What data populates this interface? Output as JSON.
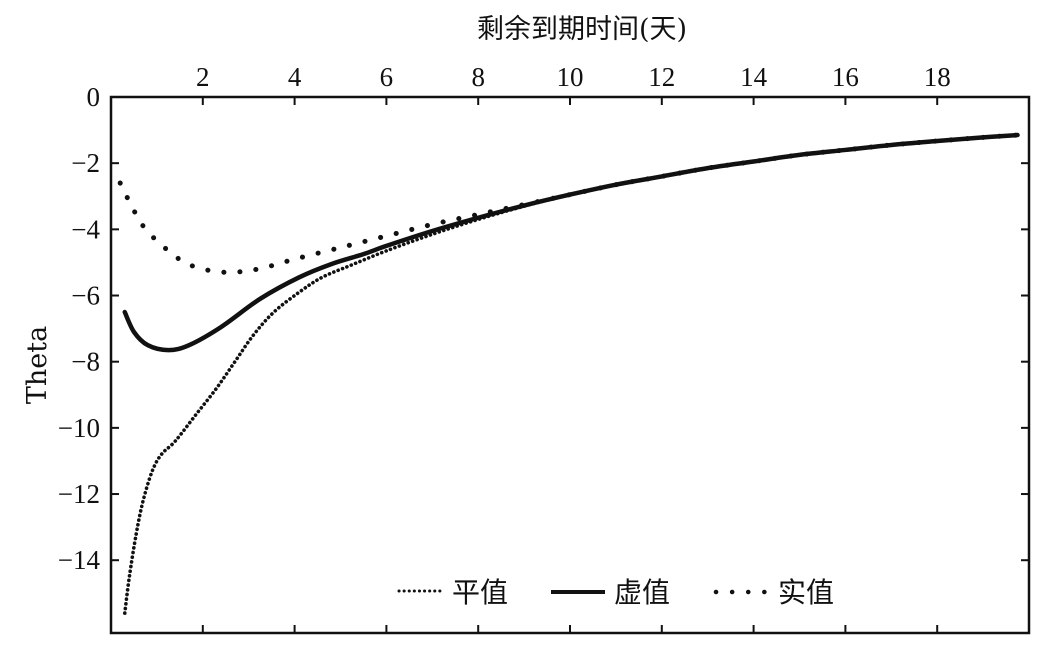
{
  "chart_data": {
    "type": "line",
    "title": "",
    "xlabel": "剩余到期时间(天)",
    "ylabel": "Theta",
    "xlabel_position": "top",
    "xlim": [
      0,
      20
    ],
    "ylim": [
      -16.2,
      0
    ],
    "x_ticks": [
      2,
      4,
      6,
      8,
      10,
      12,
      14,
      16,
      18
    ],
    "y_ticks": [
      0,
      -2,
      -4,
      -6,
      -8,
      -10,
      -12,
      -14
    ],
    "x_tick_labels": [
      "2",
      "4",
      "6",
      "8",
      "10",
      "12",
      "14",
      "16",
      "18"
    ],
    "y_tick_labels": [
      "0",
      "−2",
      "−4",
      "−6",
      "−8",
      "−10",
      "−12",
      "−14"
    ],
    "grid": false,
    "legend_position": "lower center (inside)",
    "series": [
      {
        "name": "平值",
        "style": "dense-dotted",
        "points": [
          [
            0.3,
            -15.6
          ],
          [
            0.4,
            -14.5
          ],
          [
            0.55,
            -13.2
          ],
          [
            0.7,
            -12.2
          ],
          [
            0.9,
            -11.3
          ],
          [
            1.1,
            -10.8
          ],
          [
            1.4,
            -10.4
          ],
          [
            1.85,
            -9.6
          ],
          [
            2.3,
            -8.8
          ],
          [
            2.7,
            -8.0
          ],
          [
            3.1,
            -7.2
          ],
          [
            3.55,
            -6.5
          ],
          [
            4.1,
            -5.9
          ],
          [
            4.6,
            -5.45
          ],
          [
            5.2,
            -5.1
          ],
          [
            6.0,
            -4.65
          ],
          [
            7.0,
            -4.15
          ],
          [
            8.0,
            -3.7
          ],
          [
            9.0,
            -3.3
          ],
          [
            10.0,
            -2.95
          ],
          [
            11.0,
            -2.65
          ],
          [
            12.0,
            -2.4
          ],
          [
            13.0,
            -2.15
          ],
          [
            14.0,
            -1.95
          ],
          [
            15.0,
            -1.75
          ],
          [
            16.0,
            -1.6
          ],
          [
            17.0,
            -1.45
          ],
          [
            18.0,
            -1.33
          ],
          [
            19.0,
            -1.22
          ],
          [
            19.75,
            -1.15
          ]
        ]
      },
      {
        "name": "虚值",
        "style": "solid",
        "points": [
          [
            0.3,
            -6.5
          ],
          [
            0.5,
            -7.1
          ],
          [
            0.8,
            -7.5
          ],
          [
            1.25,
            -7.65
          ],
          [
            1.7,
            -7.5
          ],
          [
            2.4,
            -6.95
          ],
          [
            3.25,
            -6.1
          ],
          [
            4.1,
            -5.45
          ],
          [
            4.8,
            -5.05
          ],
          [
            5.5,
            -4.75
          ],
          [
            6.0,
            -4.5
          ],
          [
            7.0,
            -4.05
          ],
          [
            8.0,
            -3.65
          ],
          [
            9.0,
            -3.28
          ],
          [
            10.0,
            -2.95
          ],
          [
            11.0,
            -2.65
          ],
          [
            12.0,
            -2.4
          ],
          [
            13.0,
            -2.15
          ],
          [
            14.0,
            -1.95
          ],
          [
            15.0,
            -1.75
          ],
          [
            16.0,
            -1.6
          ],
          [
            17.0,
            -1.45
          ],
          [
            18.0,
            -1.33
          ],
          [
            19.0,
            -1.22
          ],
          [
            19.75,
            -1.15
          ]
        ]
      },
      {
        "name": "实值",
        "style": "sparse-dotted",
        "points": [
          [
            0.2,
            -2.6
          ],
          [
            0.45,
            -3.3
          ],
          [
            0.7,
            -3.9
          ],
          [
            1.0,
            -4.35
          ],
          [
            1.3,
            -4.7
          ],
          [
            1.6,
            -5.0
          ],
          [
            2.0,
            -5.2
          ],
          [
            2.5,
            -5.3
          ],
          [
            3.0,
            -5.25
          ],
          [
            3.5,
            -5.1
          ],
          [
            4.0,
            -4.9
          ],
          [
            5.0,
            -4.55
          ],
          [
            6.0,
            -4.2
          ],
          [
            7.0,
            -3.85
          ],
          [
            8.0,
            -3.55
          ],
          [
            9.0,
            -3.25
          ],
          [
            10.0,
            -2.95
          ],
          [
            11.0,
            -2.65
          ],
          [
            12.0,
            -2.4
          ],
          [
            13.0,
            -2.15
          ],
          [
            14.0,
            -1.95
          ],
          [
            15.0,
            -1.75
          ],
          [
            16.0,
            -1.6
          ],
          [
            17.0,
            -1.45
          ],
          [
            18.0,
            -1.33
          ],
          [
            19.0,
            -1.22
          ],
          [
            19.75,
            -1.15
          ]
        ]
      }
    ]
  },
  "legend": {
    "items": [
      {
        "label": "平值",
        "style": "dense-dotted"
      },
      {
        "label": "虚值",
        "style": "solid"
      },
      {
        "label": "实值",
        "style": "sparse-dotted"
      }
    ]
  },
  "colors": {
    "line": "#111111",
    "axis": "#111111",
    "background": "#ffffff"
  }
}
